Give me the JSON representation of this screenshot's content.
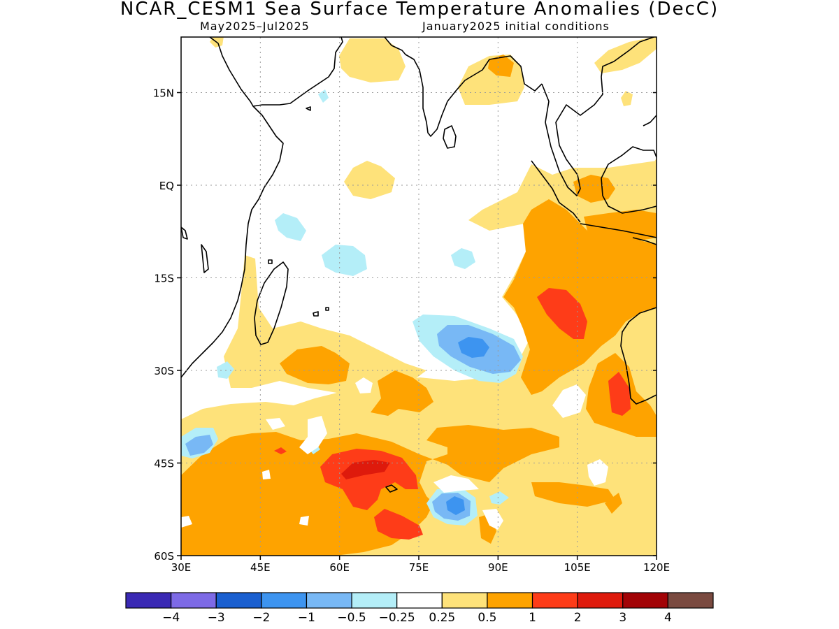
{
  "title": "NCAR_CESM1 Sea Surface Temperature Anomalies (DecC)",
  "subtitle_left": "May2025–Jul2025",
  "subtitle_right": "January2025 initial conditions",
  "map": {
    "lon_range": [
      30,
      120
    ],
    "lat_range": [
      -60,
      24
    ],
    "grid": true,
    "x_ticks": [
      {
        "value": 30,
        "label": "30E"
      },
      {
        "value": 45,
        "label": "45E"
      },
      {
        "value": 60,
        "label": "60E"
      },
      {
        "value": 75,
        "label": "75E"
      },
      {
        "value": 90,
        "label": "90E"
      },
      {
        "value": 105,
        "label": "105E"
      },
      {
        "value": 120,
        "label": "120E"
      }
    ],
    "y_ticks": [
      {
        "value": 15,
        "label": "15N"
      },
      {
        "value": 0,
        "label": "EQ"
      },
      {
        "value": -15,
        "label": "15S"
      },
      {
        "value": -30,
        "label": "30S"
      },
      {
        "value": -45,
        "label": "45S"
      },
      {
        "value": -60,
        "label": "60S"
      }
    ]
  },
  "colorbar": {
    "colors": [
      "#3a29b4",
      "#7d6ae6",
      "#1a5fd0",
      "#3d94f0",
      "#78b8f5",
      "#b4eef8",
      "#ffffff",
      "#fee27a",
      "#fea300",
      "#fe3c18",
      "#de1a0c",
      "#a20306",
      "#7a4a40"
    ],
    "labels": [
      "−4",
      "−3",
      "−2",
      "−1",
      "−0.5",
      "−0.25",
      "0.25",
      "0.5",
      "1",
      "2",
      "3",
      "4"
    ]
  }
}
